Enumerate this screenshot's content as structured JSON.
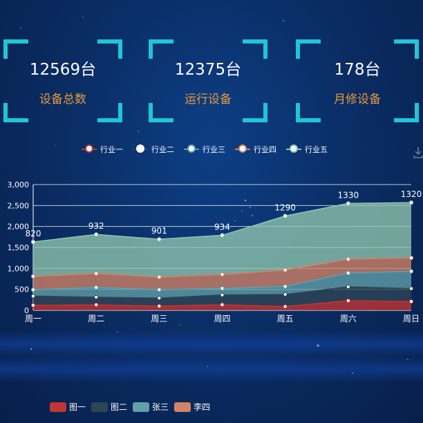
{
  "stats": [
    {
      "value": "12569台",
      "label": "设备总数"
    },
    {
      "value": "12375台",
      "label": "运行设备"
    },
    {
      "value": "178台",
      "label": "月修设备"
    }
  ],
  "legend_top": [
    {
      "name": "行业一",
      "color": "#c23531"
    },
    {
      "name": "行业二",
      "color": "#2f4554"
    },
    {
      "name": "行业三",
      "color": "#61a0a8"
    },
    {
      "name": "行业四",
      "color": "#d48265"
    },
    {
      "name": "行业五",
      "color": "#91c7ae"
    }
  ],
  "legend_bottom": [
    {
      "name": "图一",
      "color": "#c23531"
    },
    {
      "name": "图二",
      "color": "#2f4554"
    },
    {
      "name": "张三",
      "color": "#61a0a8"
    },
    {
      "name": "李四",
      "color": "#d48265"
    }
  ],
  "chart_data": {
    "type": "area",
    "stacked": true,
    "categories": [
      "周一",
      "周二",
      "周三",
      "周四",
      "周五",
      "周六",
      "周日"
    ],
    "yticks": [
      "0",
      "500",
      "1,000",
      "1,500",
      "2,000",
      "2,500",
      "3,000"
    ],
    "ylim": [
      0,
      3000
    ],
    "grid": true,
    "series": [
      {
        "name": "行业一",
        "color": "#c23531",
        "values": [
          120,
          132,
          101,
          134,
          90,
          230,
          210
        ]
      },
      {
        "name": "行业二",
        "color": "#2f4554",
        "values": [
          220,
          182,
          191,
          234,
          290,
          330,
          310
        ]
      },
      {
        "name": "行业三",
        "color": "#61a0a8",
        "values": [
          150,
          232,
          201,
          154,
          190,
          330,
          410
        ]
      },
      {
        "name": "行业四",
        "color": "#d48265",
        "values": [
          320,
          332,
          301,
          334,
          390,
          330,
          320
        ]
      },
      {
        "name": "行业五",
        "color": "#91c7ae",
        "values": [
          820,
          932,
          901,
          934,
          1290,
          1330,
          1320
        ]
      }
    ],
    "top_labels": [
      "820",
      "932",
      "901",
      "934",
      "1290",
      "1330",
      "1320"
    ]
  }
}
